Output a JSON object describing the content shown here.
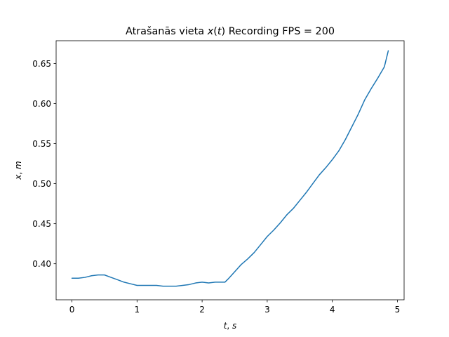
{
  "chart_data": {
    "type": "line",
    "title_prefix": "Atrašanās vieta ",
    "title_var": "x",
    "title_paren_open": "(",
    "title_arg": "t",
    "title_paren_close": ")",
    "title_suffix": " Recording FPS = 200",
    "xlabel_var": "t",
    "xlabel_unit": "s",
    "ylabel_var": "x",
    "ylabel_unit": "m",
    "label_sep": ", ",
    "xlim": [
      -0.243,
      5.103
    ],
    "ylim": [
      0.355,
      0.6785
    ],
    "x_ticks": [
      0,
      1,
      2,
      3,
      4,
      5
    ],
    "x_tick_labels": [
      "0",
      "1",
      "2",
      "3",
      "4",
      "5"
    ],
    "y_ticks": [
      0.4,
      0.45,
      0.5,
      0.55,
      0.6,
      0.65
    ],
    "y_tick_labels": [
      "0.40",
      "0.45",
      "0.50",
      "0.55",
      "0.60",
      "0.65"
    ],
    "grid": false,
    "legend": "none",
    "line_color": "#1f77b4",
    "series": [
      {
        "x": [
          0.0,
          0.1,
          0.2,
          0.3,
          0.4,
          0.5,
          0.6,
          0.7,
          0.8,
          0.9,
          1.0,
          1.1,
          1.2,
          1.3,
          1.4,
          1.5,
          1.6,
          1.7,
          1.8,
          1.9,
          2.0,
          2.1,
          2.2,
          2.3,
          2.35,
          2.4,
          2.5,
          2.6,
          2.7,
          2.8,
          2.9,
          3.0,
          3.1,
          3.2,
          3.3,
          3.4,
          3.5,
          3.6,
          3.7,
          3.8,
          3.9,
          4.0,
          4.1,
          4.2,
          4.3,
          4.4,
          4.5,
          4.6,
          4.7,
          4.8,
          4.86
        ],
        "y": [
          0.382,
          0.382,
          0.383,
          0.385,
          0.386,
          0.386,
          0.383,
          0.38,
          0.377,
          0.375,
          0.373,
          0.373,
          0.373,
          0.373,
          0.372,
          0.372,
          0.372,
          0.373,
          0.374,
          0.376,
          0.377,
          0.376,
          0.377,
          0.377,
          0.377,
          0.381,
          0.39,
          0.399,
          0.406,
          0.414,
          0.424,
          0.434,
          0.442,
          0.451,
          0.461,
          0.469,
          0.479,
          0.489,
          0.5,
          0.511,
          0.52,
          0.53,
          0.541,
          0.555,
          0.571,
          0.587,
          0.605,
          0.619,
          0.632,
          0.646,
          0.666
        ]
      }
    ]
  }
}
